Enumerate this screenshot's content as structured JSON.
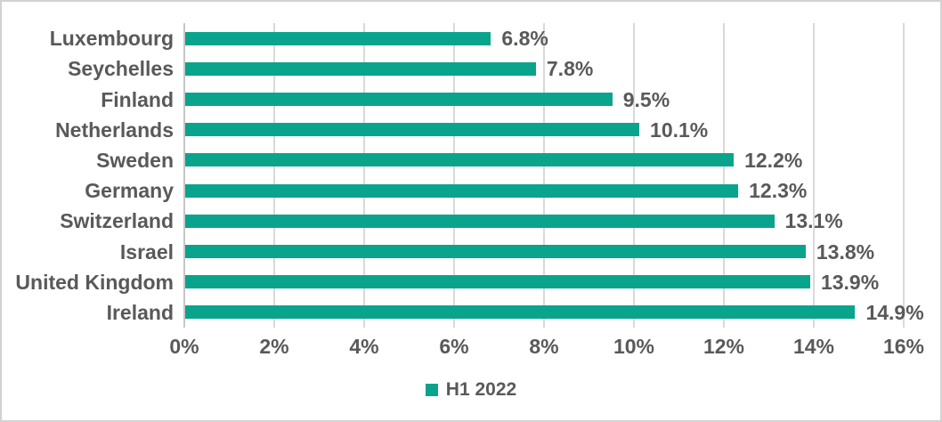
{
  "chart_data": {
    "type": "bar",
    "orientation": "horizontal",
    "title": "",
    "categories": [
      "Luxembourg",
      "Seychelles",
      "Finland",
      "Netherlands",
      "Sweden",
      "Germany",
      "Switzerland",
      "Israel",
      "United Kingdom",
      "Ireland"
    ],
    "series": [
      {
        "name": "H1 2022",
        "values": [
          6.8,
          7.8,
          9.5,
          10.1,
          12.2,
          12.3,
          13.1,
          13.8,
          13.9,
          14.9
        ]
      }
    ],
    "value_labels": [
      "6.8%",
      "7.8%",
      "9.5%",
      "10.1%",
      "12.2%",
      "12.3%",
      "13.1%",
      "13.8%",
      "13.9%",
      "14.9%"
    ],
    "x_ticks": [
      {
        "value": 0,
        "label": "0%"
      },
      {
        "value": 2,
        "label": "2%"
      },
      {
        "value": 4,
        "label": "4%"
      },
      {
        "value": 6,
        "label": "6%"
      },
      {
        "value": 8,
        "label": "8%"
      },
      {
        "value": 10,
        "label": "10%"
      },
      {
        "value": 12,
        "label": "12%"
      },
      {
        "value": 14,
        "label": "14%"
      },
      {
        "value": 16,
        "label": "16%"
      }
    ],
    "xlim": [
      0,
      16
    ],
    "grid": "vertical",
    "legend_position": "bottom",
    "colors": {
      "bar": "#0aa48c",
      "text": "#595959",
      "gridline": "#d9d9d9",
      "axis_line": "#c6c6c6",
      "border": "#d2d2d2",
      "background": "#ffffff"
    }
  }
}
